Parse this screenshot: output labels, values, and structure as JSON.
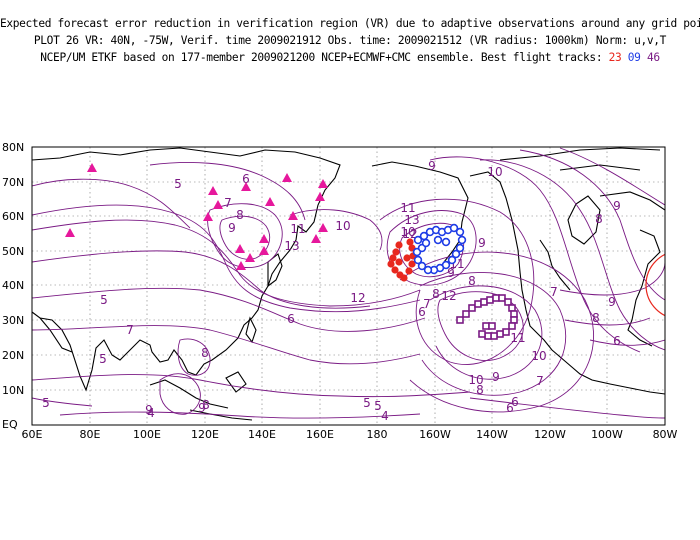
{
  "header": {
    "line1": "Expected forecast error reduction in verification region (VR) due to adaptive observations around any grid point.",
    "line2": "PLOT 26 VR: 40N, -75W, Verif. time 2009021912 Obs. time: 2009021512 (VR radius: 1000km) Norm: u,v,T",
    "line3_prefix": "NCEP/UM ETKF based on 177-member 2009021200 NCEP+ECMWF+CMC ensemble. Best flight tracks:",
    "track1": "23",
    "track2": "09",
    "track3": "46"
  },
  "map": {
    "lat_labels": [
      "80N",
      "70N",
      "60N",
      "50N",
      "40N",
      "30N",
      "20N",
      "10N",
      "EQ"
    ],
    "lon_labels": [
      "60E",
      "80E",
      "100E",
      "120E",
      "140E",
      "160E",
      "180",
      "160W",
      "140W",
      "120W",
      "100W",
      "80W"
    ],
    "contour_labels": [
      "5",
      "6",
      "7",
      "8",
      "9",
      "13",
      "11",
      "10",
      "9",
      "12",
      "11",
      "10",
      "9",
      "8",
      "5",
      "6",
      "7",
      "8",
      "12",
      "13",
      "11",
      "10",
      "12",
      "8",
      "7",
      "6",
      "9",
      "11",
      "10",
      "9",
      "8",
      "7",
      "6",
      "8",
      "9",
      "5",
      "4",
      "5",
      "9",
      "4",
      "6",
      "5",
      "5",
      "10",
      "9",
      "8",
      "9",
      "8",
      "7",
      "6"
    ],
    "colors": {
      "contour": "#7a1a84",
      "track1": "#e8281e",
      "track2": "#1e3ce6",
      "track3": "#7a1a84",
      "triangles": "#e6189c",
      "vr_circle": "#e8281e"
    }
  }
}
